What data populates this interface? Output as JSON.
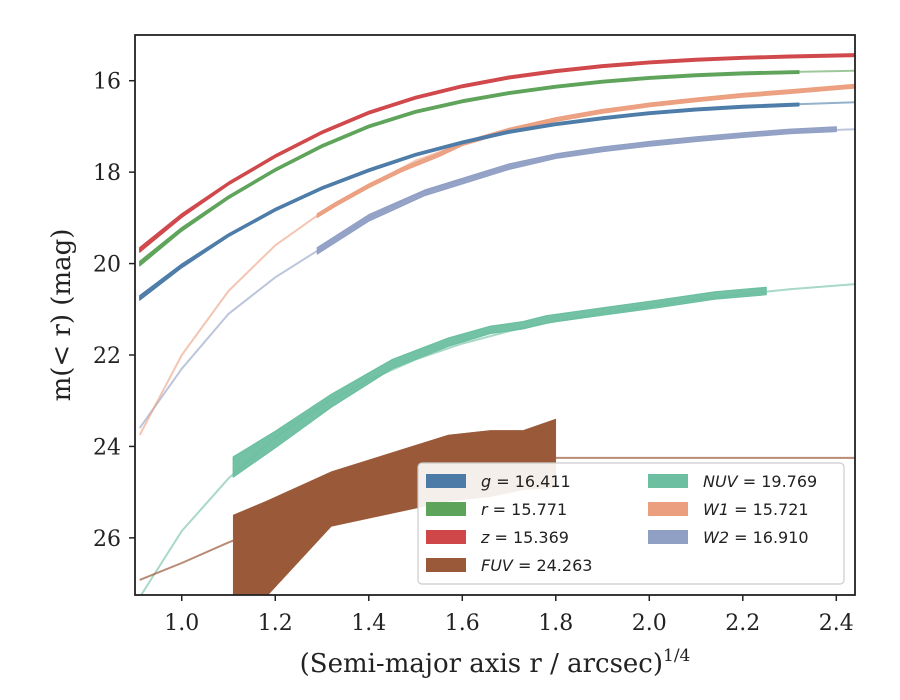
{
  "chart_data": {
    "type": "line",
    "xlabel": "(Semi-major axis r / arcsec)",
    "xlabel_exponent": "1/4",
    "ylabel": "m(< r) (mag)",
    "xlim": [
      0.91,
      2.44
    ],
    "ylim": [
      27.25,
      15.0
    ],
    "y_inverted": true,
    "xticks": [
      1.0,
      1.2,
      1.4,
      1.6,
      1.8,
      2.0,
      2.2,
      2.4
    ],
    "yticks": [
      16,
      18,
      20,
      22,
      24,
      26
    ],
    "grid": false,
    "legend_position": "lower-right",
    "series": [
      {
        "name": "g = 16.411",
        "label_var": "g",
        "label_val": "= 16.411",
        "color": "#4c7ba8",
        "model_x": [
          0.91,
          1.0,
          1.1,
          1.2,
          1.3,
          1.4,
          1.5,
          1.6,
          1.7,
          1.8,
          1.9,
          2.0,
          2.1,
          2.2,
          2.3,
          2.44
        ],
        "model_y": [
          20.75,
          20.05,
          19.38,
          18.82,
          18.35,
          17.96,
          17.62,
          17.35,
          17.12,
          16.95,
          16.82,
          16.71,
          16.63,
          16.57,
          16.52,
          16.47
        ],
        "data_x": [
          0.91,
          1.0,
          1.1,
          1.2,
          1.3,
          1.4,
          1.5,
          1.6,
          1.7,
          1.8,
          1.9,
          2.0,
          2.1,
          2.2,
          2.32
        ],
        "data_y": [
          20.75,
          20.05,
          19.38,
          18.82,
          18.35,
          17.96,
          17.62,
          17.35,
          17.12,
          16.95,
          16.82,
          16.71,
          16.63,
          16.57,
          16.52
        ],
        "data_err": [
          0.05,
          0.04,
          0.03,
          0.03,
          0.03,
          0.03,
          0.03,
          0.03,
          0.03,
          0.03,
          0.03,
          0.03,
          0.03,
          0.03,
          0.03
        ]
      },
      {
        "name": "r = 15.771",
        "label_var": "r",
        "label_val": "= 15.771",
        "color": "#5ea35a",
        "model_x": [
          0.91,
          1.0,
          1.1,
          1.2,
          1.3,
          1.4,
          1.5,
          1.6,
          1.7,
          1.8,
          1.9,
          2.0,
          2.1,
          2.2,
          2.3,
          2.44
        ],
        "model_y": [
          20.0,
          19.25,
          18.55,
          17.95,
          17.43,
          17.0,
          16.68,
          16.45,
          16.27,
          16.13,
          16.02,
          15.94,
          15.88,
          15.84,
          15.81,
          15.78
        ],
        "data_x": [
          0.91,
          1.0,
          1.1,
          1.2,
          1.3,
          1.4,
          1.5,
          1.6,
          1.7,
          1.8,
          1.9,
          2.0,
          2.1,
          2.2,
          2.32
        ],
        "data_y": [
          20.0,
          19.25,
          18.55,
          17.95,
          17.43,
          17.0,
          16.68,
          16.45,
          16.27,
          16.13,
          16.02,
          15.94,
          15.88,
          15.84,
          15.81
        ],
        "data_err": [
          0.05,
          0.04,
          0.03,
          0.03,
          0.03,
          0.03,
          0.03,
          0.03,
          0.03,
          0.03,
          0.03,
          0.03,
          0.03,
          0.03,
          0.03
        ]
      },
      {
        "name": "z = 15.369",
        "label_var": "z",
        "label_val": "= 15.369",
        "color": "#d0474a",
        "model_x": [
          0.91,
          1.0,
          1.1,
          1.2,
          1.3,
          1.4,
          1.5,
          1.6,
          1.7,
          1.8,
          1.9,
          2.0,
          2.1,
          2.2,
          2.3,
          2.44
        ],
        "model_y": [
          19.7,
          18.95,
          18.25,
          17.65,
          17.13,
          16.7,
          16.37,
          16.12,
          15.93,
          15.79,
          15.68,
          15.6,
          15.54,
          15.5,
          15.47,
          15.44
        ],
        "data_x": [
          0.91,
          1.0,
          1.1,
          1.2,
          1.3,
          1.4,
          1.5,
          1.6,
          1.7,
          1.8,
          1.9,
          2.0,
          2.1,
          2.2,
          2.3,
          2.44
        ],
        "data_y": [
          19.7,
          18.95,
          18.25,
          17.65,
          17.13,
          16.7,
          16.37,
          16.12,
          15.93,
          15.79,
          15.68,
          15.6,
          15.54,
          15.5,
          15.47,
          15.44
        ],
        "data_err": [
          0.05,
          0.04,
          0.03,
          0.03,
          0.03,
          0.03,
          0.03,
          0.03,
          0.03,
          0.03,
          0.03,
          0.03,
          0.03,
          0.03,
          0.03,
          0.03
        ]
      },
      {
        "name": "FUV = 24.263",
        "label_var": "FUV",
        "label_val": "= 24.263",
        "color": "#9a5a3a",
        "model_x": [
          0.91,
          1.0,
          1.1,
          1.2,
          1.3,
          1.4,
          1.5,
          1.6,
          1.7,
          1.8,
          2.0,
          2.2,
          2.44
        ],
        "model_y": [
          26.92,
          26.55,
          26.1,
          25.7,
          25.3,
          24.95,
          24.62,
          24.38,
          24.27,
          24.25,
          24.25,
          24.25,
          24.25
        ],
        "data_x": [
          1.11,
          1.18,
          1.32,
          1.57,
          1.66,
          1.73,
          1.8
        ],
        "data_upper": [
          25.5,
          25.2,
          24.55,
          23.75,
          23.65,
          23.65,
          23.4
        ],
        "data_lower": [
          27.6,
          27.3,
          25.75,
          25.2,
          25.1,
          24.95,
          24.9
        ]
      },
      {
        "name": "NUV = 19.769",
        "label_var": "NUV",
        "label_val": "= 19.769",
        "color": "#6cbfa0",
        "model_x": [
          0.91,
          1.0,
          1.1,
          1.2,
          1.3,
          1.4,
          1.5,
          1.6,
          1.7,
          1.8,
          1.9,
          2.0,
          2.1,
          2.2,
          2.3,
          2.44
        ],
        "model_y": [
          27.3,
          25.85,
          24.7,
          23.8,
          23.1,
          22.55,
          22.1,
          21.75,
          21.48,
          21.26,
          21.08,
          20.93,
          20.79,
          20.67,
          20.56,
          20.45
        ],
        "data_x": [
          1.11,
          1.2,
          1.32,
          1.45,
          1.57,
          1.66,
          1.73,
          1.78,
          1.9,
          2.02,
          2.14,
          2.25
        ],
        "data_y": [
          24.45,
          23.85,
          23.0,
          22.2,
          21.72,
          21.45,
          21.35,
          21.22,
          21.05,
          20.88,
          20.7,
          20.6
        ],
        "data_err": [
          0.22,
          0.18,
          0.14,
          0.1,
          0.09,
          0.08,
          0.08,
          0.08,
          0.08,
          0.08,
          0.08,
          0.08
        ]
      },
      {
        "name": "W1 = 15.721",
        "label_var": "W1",
        "label_val": "= 15.721",
        "color": "#eb9f7f",
        "model_x": [
          0.91,
          1.0,
          1.1,
          1.2,
          1.29,
          1.4,
          1.5,
          1.6,
          1.7,
          1.8,
          1.9,
          2.0,
          2.1,
          2.2,
          2.3,
          2.44
        ],
        "model_y": [
          23.75,
          22.0,
          20.6,
          19.6,
          18.95,
          18.3,
          17.75,
          17.38,
          17.08,
          16.85,
          16.67,
          16.53,
          16.42,
          16.32,
          16.24,
          16.12
        ],
        "data_x": [
          1.29,
          1.33,
          1.4,
          1.47,
          1.55,
          1.6,
          1.7,
          1.8,
          1.9,
          2.0,
          2.1,
          2.2,
          2.3,
          2.44
        ],
        "data_y": [
          18.95,
          18.7,
          18.3,
          17.95,
          17.62,
          17.38,
          17.08,
          16.85,
          16.67,
          16.53,
          16.42,
          16.32,
          16.24,
          16.12
        ],
        "data_err": [
          0.04,
          0.04,
          0.04,
          0.04,
          0.04,
          0.04,
          0.04,
          0.04,
          0.04,
          0.04,
          0.04,
          0.04,
          0.04,
          0.04
        ]
      },
      {
        "name": "W2 = 16.910",
        "label_var": "W2",
        "label_val": "= 16.910",
        "color": "#909fc4",
        "model_x": [
          0.91,
          1.0,
          1.1,
          1.2,
          1.29,
          1.4,
          1.5,
          1.6,
          1.7,
          1.8,
          1.9,
          2.0,
          2.1,
          2.2,
          2.3,
          2.44
        ],
        "model_y": [
          23.6,
          22.3,
          21.1,
          20.3,
          19.72,
          19.0,
          18.5,
          18.17,
          17.88,
          17.65,
          17.5,
          17.38,
          17.28,
          17.19,
          17.11,
          17.06
        ],
        "data_x": [
          1.29,
          1.4,
          1.52,
          1.7,
          1.8,
          1.9,
          2.0,
          2.1,
          2.2,
          2.3,
          2.4
        ],
        "data_y": [
          19.72,
          19.0,
          18.45,
          17.88,
          17.65,
          17.5,
          17.38,
          17.28,
          17.19,
          17.11,
          17.06
        ],
        "data_err": [
          0.07,
          0.07,
          0.06,
          0.06,
          0.05,
          0.05,
          0.05,
          0.05,
          0.05,
          0.05,
          0.05
        ]
      }
    ],
    "legend_columns": [
      [
        "g = 16.411",
        "r = 15.771",
        "z = 15.369",
        "FUV = 24.263"
      ],
      [
        "NUV = 19.769",
        "W1 = 15.721",
        "W2 = 16.910"
      ]
    ]
  }
}
